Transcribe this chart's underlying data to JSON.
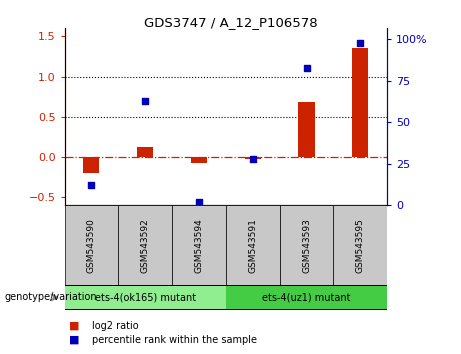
{
  "title": "GDS3747 / A_12_P106578",
  "samples": [
    "GSM543590",
    "GSM543592",
    "GSM543594",
    "GSM543591",
    "GSM543593",
    "GSM543595"
  ],
  "log2_ratio": [
    -0.2,
    0.12,
    -0.07,
    -0.03,
    0.68,
    1.35
  ],
  "percentile_rank_pct": [
    12,
    63,
    2,
    28,
    83,
    98
  ],
  "group1_label": "ets-4(ok165) mutant",
  "group2_label": "ets-4(uz1) mutant",
  "group1_color": "#90EE90",
  "group2_color": "#44CC44",
  "sample_box_color": "#C8C8C8",
  "bar_color": "#CC2200",
  "dot_color": "#0000BB",
  "ylim_left": [
    -0.6,
    1.6
  ],
  "ylim_right": [
    0,
    106.67
  ],
  "hlines_dotted": [
    0.5,
    1.0
  ],
  "hline_dashdot": 0.0,
  "genotype_label": "genotype/variation",
  "legend_bar": "log2 ratio",
  "legend_dot": "percentile rank within the sample",
  "left_yticks": [
    -0.5,
    0.0,
    0.5,
    1.0,
    1.5
  ],
  "right_yticks": [
    0,
    25,
    50,
    75,
    100
  ],
  "right_ytick_labels": [
    "0",
    "25",
    "50",
    "75",
    "100%"
  ]
}
